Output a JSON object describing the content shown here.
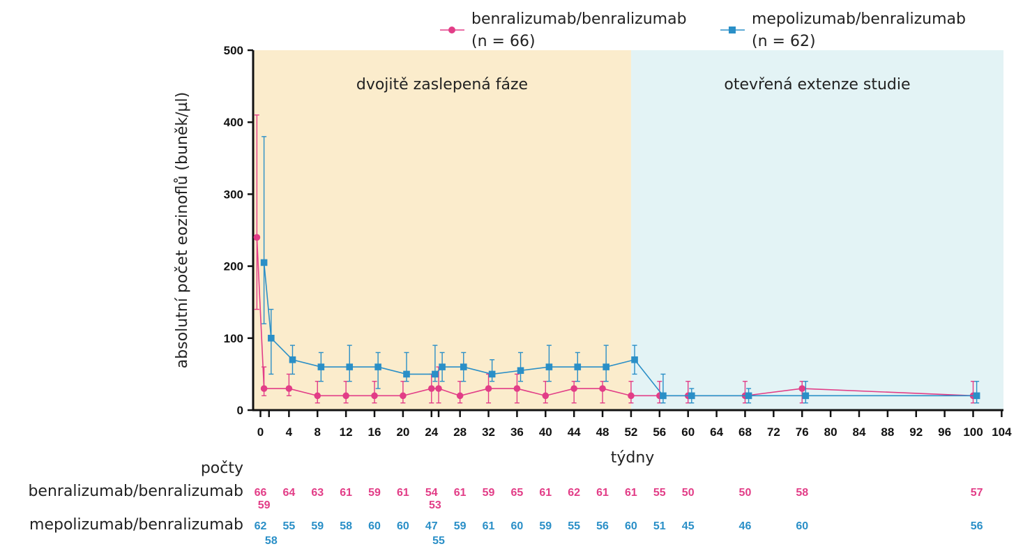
{
  "colors": {
    "benra": "#e23d87",
    "mepo": "#2a8fc7",
    "phase1_bg": "#fbeccc",
    "phase2_bg": "#e3f3f5",
    "axis": "#111111",
    "text": "#222222"
  },
  "legend": {
    "series1_name": "benralizumab/benralizumab",
    "series1_n": "(n = 66)",
    "series2_name": "mepolizumab/benralizumab",
    "series2_n": "(n = 62)"
  },
  "counts": {
    "header": "počty",
    "row1_label": "benralizumab/benralizumab",
    "row2_label": "mepolizumab/benralizumab"
  },
  "chart_data": {
    "type": "line",
    "ylabel": "absolutní počet eozinoflů (buněk/µl)",
    "xlabel": "týdny",
    "ylim": [
      0,
      500
    ],
    "xlim": [
      -1,
      104
    ],
    "yticks": [
      0,
      100,
      200,
      300,
      400,
      500
    ],
    "xticks": [
      0,
      4,
      8,
      12,
      16,
      20,
      24,
      28,
      32,
      36,
      40,
      44,
      48,
      52,
      56,
      60,
      64,
      68,
      72,
      76,
      80,
      84,
      88,
      92,
      96,
      100,
      104
    ],
    "phases": [
      {
        "label": "dvojitě zaslepená fáze",
        "x_start": -1,
        "x_end": 52,
        "color": "#fbeccc"
      },
      {
        "label": "otevřená extenze studie",
        "x_start": 52,
        "x_end": 104,
        "color": "#e3f3f5"
      }
    ],
    "series": [
      {
        "name": "benralizumab/benralizumab",
        "color": "#e23d87",
        "marker": "circle",
        "points": [
          {
            "x": -0.5,
            "y": 240,
            "lo": 140,
            "hi": 410
          },
          {
            "x": 0.5,
            "y": 30,
            "lo": 20,
            "hi": 60
          },
          {
            "x": 4,
            "y": 30,
            "lo": 20,
            "hi": 50
          },
          {
            "x": 8,
            "y": 20,
            "lo": 10,
            "hi": 40
          },
          {
            "x": 12,
            "y": 20,
            "lo": 10,
            "hi": 40
          },
          {
            "x": 16,
            "y": 20,
            "lo": 10,
            "hi": 40
          },
          {
            "x": 20,
            "y": 20,
            "lo": 10,
            "hi": 40
          },
          {
            "x": 24,
            "y": 30,
            "lo": 10,
            "hi": 50
          },
          {
            "x": 25,
            "y": 30,
            "lo": 10,
            "hi": 60
          },
          {
            "x": 28,
            "y": 20,
            "lo": 10,
            "hi": 40
          },
          {
            "x": 32,
            "y": 30,
            "lo": 10,
            "hi": 50
          },
          {
            "x": 36,
            "y": 30,
            "lo": 10,
            "hi": 50
          },
          {
            "x": 40,
            "y": 20,
            "lo": 10,
            "hi": 40
          },
          {
            "x": 44,
            "y": 30,
            "lo": 10,
            "hi": 40
          },
          {
            "x": 48,
            "y": 30,
            "lo": 10,
            "hi": 40
          },
          {
            "x": 52,
            "y": 20,
            "lo": 10,
            "hi": 40
          },
          {
            "x": 56,
            "y": 20,
            "lo": 10,
            "hi": 40
          },
          {
            "x": 60,
            "y": 20,
            "lo": 10,
            "hi": 40
          },
          {
            "x": 68,
            "y": 20,
            "lo": 10,
            "hi": 40
          },
          {
            "x": 76,
            "y": 30,
            "lo": 10,
            "hi": 40
          },
          {
            "x": 100,
            "y": 20,
            "lo": 10,
            "hi": 40
          }
        ],
        "counts": [
          {
            "x": 0,
            "n": "66"
          },
          {
            "x": 0.5,
            "n": "59",
            "row": 2
          },
          {
            "x": 4,
            "n": "64"
          },
          {
            "x": 8,
            "n": "63"
          },
          {
            "x": 12,
            "n": "61"
          },
          {
            "x": 16,
            "n": "59"
          },
          {
            "x": 20,
            "n": "61"
          },
          {
            "x": 24,
            "n": "54"
          },
          {
            "x": 24.5,
            "n": "53",
            "row": 2
          },
          {
            "x": 28,
            "n": "61"
          },
          {
            "x": 32,
            "n": "59"
          },
          {
            "x": 36,
            "n": "65"
          },
          {
            "x": 40,
            "n": "61"
          },
          {
            "x": 44,
            "n": "62"
          },
          {
            "x": 48,
            "n": "61"
          },
          {
            "x": 52,
            "n": "61"
          },
          {
            "x": 56,
            "n": "55"
          },
          {
            "x": 60,
            "n": "50"
          },
          {
            "x": 68,
            "n": "50"
          },
          {
            "x": 76,
            "n": "58"
          },
          {
            "x": 100.5,
            "n": "57"
          }
        ]
      },
      {
        "name": "mepolizumab/benralizumab",
        "color": "#2a8fc7",
        "marker": "square",
        "points": [
          {
            "x": 0.5,
            "y": 205,
            "lo": 120,
            "hi": 380
          },
          {
            "x": 1.5,
            "y": 100,
            "lo": 50,
            "hi": 140
          },
          {
            "x": 4.5,
            "y": 70,
            "lo": 50,
            "hi": 90
          },
          {
            "x": 8.5,
            "y": 60,
            "lo": 40,
            "hi": 80
          },
          {
            "x": 12.5,
            "y": 60,
            "lo": 40,
            "hi": 90
          },
          {
            "x": 16.5,
            "y": 60,
            "lo": 30,
            "hi": 80
          },
          {
            "x": 20.5,
            "y": 50,
            "lo": 40,
            "hi": 80
          },
          {
            "x": 24.5,
            "y": 50,
            "lo": 40,
            "hi": 90
          },
          {
            "x": 25.5,
            "y": 60,
            "lo": 40,
            "hi": 80
          },
          {
            "x": 28.5,
            "y": 60,
            "lo": 40,
            "hi": 80
          },
          {
            "x": 32.5,
            "y": 50,
            "lo": 40,
            "hi": 70
          },
          {
            "x": 36.5,
            "y": 55,
            "lo": 40,
            "hi": 80
          },
          {
            "x": 40.5,
            "y": 60,
            "lo": 40,
            "hi": 90
          },
          {
            "x": 44.5,
            "y": 60,
            "lo": 40,
            "hi": 80
          },
          {
            "x": 48.5,
            "y": 60,
            "lo": 40,
            "hi": 90
          },
          {
            "x": 52.5,
            "y": 70,
            "lo": 50,
            "hi": 90
          },
          {
            "x": 56.5,
            "y": 20,
            "lo": 10,
            "hi": 50
          },
          {
            "x": 60.5,
            "y": 20,
            "lo": 10,
            "hi": 30
          },
          {
            "x": 68.5,
            "y": 20,
            "lo": 10,
            "hi": 30
          },
          {
            "x": 76.5,
            "y": 20,
            "lo": 10,
            "hi": 40
          },
          {
            "x": 100.5,
            "y": 20,
            "lo": 10,
            "hi": 40
          }
        ],
        "counts": [
          {
            "x": 0,
            "n": "62"
          },
          {
            "x": 1.5,
            "n": "58",
            "row": 2
          },
          {
            "x": 4,
            "n": "55"
          },
          {
            "x": 8,
            "n": "59"
          },
          {
            "x": 12,
            "n": "58"
          },
          {
            "x": 16,
            "n": "60"
          },
          {
            "x": 20,
            "n": "60"
          },
          {
            "x": 24,
            "n": "47"
          },
          {
            "x": 25,
            "n": "55",
            "row": 2
          },
          {
            "x": 28,
            "n": "59"
          },
          {
            "x": 32,
            "n": "61"
          },
          {
            "x": 36,
            "n": "60"
          },
          {
            "x": 40,
            "n": "59"
          },
          {
            "x": 44,
            "n": "55"
          },
          {
            "x": 48,
            "n": "56"
          },
          {
            "x": 52,
            "n": "60"
          },
          {
            "x": 56,
            "n": "51"
          },
          {
            "x": 60,
            "n": "45"
          },
          {
            "x": 68,
            "n": "46"
          },
          {
            "x": 76,
            "n": "60"
          },
          {
            "x": 100.5,
            "n": "56"
          }
        ]
      }
    ]
  }
}
